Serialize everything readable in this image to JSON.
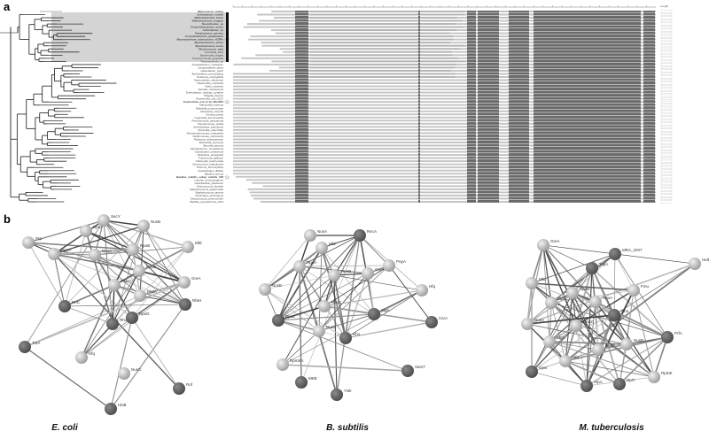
{
  "panels": {
    "a": "a",
    "b": "b"
  },
  "tree": {
    "taxa": [
      "Micrococcus_luteus",
      "Actinomyces_israelii",
      "Bifidobacterium_breve",
      "Bifidobacterium_longum",
      "Nocardioides_sp",
      "Propionibacterium_acnes",
      "Arthrobacter_sp",
      "Streptomyces_griseus",
      "Corynebacterium_glutamicum",
      "Mycobacterium_tuberculosis_H37Rv",
      "Mycobacterium_avium",
      "Mycobacterium_bovis",
      "Rhodococcus_equi",
      "Prevotella_bivia",
      "Bacteroides_fragilis",
      "Porphyromonas_gingivalis",
      "Flavobacterium_sp",
      "Fusobacterium_nucleatum",
      "Campylobacter_jejuni",
      "Helicobacter_pylori",
      "Burkholderia_cenocepacia",
      "Neisseria_meningitidis",
      "Haemophilus_influenzae",
      "Pasteurella_multocida",
      "Vibrio_cholerae",
      "Serratia_marcescens",
      "Enterobacter_cloacae_complex",
      "Shigella_flexneri",
      "Escherichia_coli_O157",
      "Escherichia_coli_K-12_MG1655",
      "Salmonella_enterica",
      "Klebsiella_pneumoniae",
      "Citrobacter_freundii",
      "Yersinia_pestis",
      "Legionella_pneumophila",
      "Pseudomonas_aeruginosa",
      "Pseudomonas_putida",
      "Acinetobacter_baumannii",
      "Moraxella_catarrhalis",
      "Stenotrophomonas_maltophilia",
      "Xanthomonas_campestris",
      "Ralstonia_solanacearum",
      "Bordetella_pertussis",
      "Brucella_abortus",
      "Agrobacterium_tumefaciens",
      "Caulobacter_crescentus",
      "Rickettsia_prowazekii",
      "Treponema_pallidum",
      "Chlamydia_trachomatis",
      "Deinococcus_radiodurans",
      "Thermus_thermophilus",
      "Clostridioides_difficile",
      "Bacillus_cereus",
      "Bacillus_subtilis_subsp_subtilis_168",
      "Listeria_monocytogenes",
      "Lactobacillus_plantarum",
      "Enterococcus_faecalis",
      "Staphylococcus_epidermidis",
      "Staphylococcus_aureus",
      "Clostridium_perfringens",
      "Streptococcus_pneumoniae",
      "Bacillus_pseudofirmus_OF4"
    ],
    "highlighted_taxa": [
      "Mycobacterium_tuberculosis_H37Rv",
      "Escherichia_coli_K-12_MG1655",
      "Bacillus_subtilis_subsp_subtilis_168"
    ]
  },
  "alignment": {
    "length_header": "Length"
  },
  "networks": [
    {
      "species": "E. coli",
      "nodes": [
        {
          "label": "Prp",
          "shade": "light"
        },
        {
          "label": "SecY",
          "shade": "light"
        },
        {
          "label": "NusB",
          "shade": "light"
        },
        {
          "label": "RpsJ",
          "shade": "light"
        },
        {
          "label": "RpoA",
          "shade": "light"
        },
        {
          "label": "NusA",
          "shade": "light"
        },
        {
          "label": "RpoB",
          "shade": "light"
        },
        {
          "label": "Mfd",
          "shade": "light"
        },
        {
          "label": "RpoZ",
          "shade": "light"
        },
        {
          "label": "RpoC",
          "shade": "light"
        },
        {
          "label": "GreA",
          "shade": "light"
        },
        {
          "label": "PnpA",
          "shade": "light"
        },
        {
          "label": "RnC",
          "shade": "dark"
        },
        {
          "label": "RfaH",
          "shade": "dark"
        },
        {
          "label": "RpoD",
          "shade": "dark"
        },
        {
          "label": "Rho",
          "shade": "dark"
        },
        {
          "label": "TrxA",
          "shade": "dark"
        },
        {
          "label": "Hfq",
          "shade": "light"
        },
        {
          "label": "NusG",
          "shade": "light"
        },
        {
          "label": "Rof",
          "shade": "dark"
        },
        {
          "label": "HisB",
          "shade": "dark"
        }
      ]
    },
    {
      "species": "B. subtilis",
      "nodes": [
        {
          "label": "NusA",
          "shade": "light"
        },
        {
          "label": "RecA",
          "shade": "dark"
        },
        {
          "label": "Mfd",
          "shade": "light"
        },
        {
          "label": "RpoA",
          "shade": "light"
        },
        {
          "label": "RpoB",
          "shade": "light"
        },
        {
          "label": "GreA",
          "shade": "light"
        },
        {
          "label": "PnpA",
          "shade": "light"
        },
        {
          "label": "NusB",
          "shade": "light"
        },
        {
          "label": "Hfq",
          "shade": "light"
        },
        {
          "label": "RpoC",
          "shade": "light"
        },
        {
          "label": "SigA",
          "shade": "dark"
        },
        {
          "label": "CsrA",
          "shade": "dark"
        },
        {
          "label": "RpoE",
          "shade": "dark"
        },
        {
          "label": "NusG",
          "shade": "light"
        },
        {
          "label": "Rho",
          "shade": "dark"
        },
        {
          "label": "RpmEA",
          "shade": "light"
        },
        {
          "label": "SamT",
          "shade": "dark"
        },
        {
          "label": "MtrB",
          "shade": "dark"
        },
        {
          "label": "YwlI",
          "shade": "dark"
        }
      ]
    },
    {
      "species": "M. tuberculosis",
      "nodes": [
        {
          "label": "GreA",
          "shade": "light"
        },
        {
          "label": "MRA_2207",
          "shade": "dark"
        },
        {
          "label": "TopA",
          "shade": "dark"
        },
        {
          "label": "HelD",
          "shade": "light"
        },
        {
          "label": "Mfd",
          "shade": "light"
        },
        {
          "label": "Fmu",
          "shade": "light"
        },
        {
          "label": "RpoB",
          "shade": "light"
        },
        {
          "label": "RpoC",
          "shade": "light"
        },
        {
          "label": "RpoA",
          "shade": "light"
        },
        {
          "label": "NusA",
          "shade": "light"
        },
        {
          "label": "Rho",
          "shade": "dark"
        },
        {
          "label": "RpoZ",
          "shade": "light"
        },
        {
          "label": "PrfA",
          "shade": "dark"
        },
        {
          "label": "SigA",
          "shade": "light"
        },
        {
          "label": "NusG",
          "shade": "light"
        },
        {
          "label": "NusB",
          "shade": "light"
        },
        {
          "label": "Hfq",
          "shade": "light"
        },
        {
          "label": "GpsI",
          "shade": "dark"
        },
        {
          "label": "AtpA",
          "shade": "dark"
        },
        {
          "label": "RplY",
          "shade": "dark"
        },
        {
          "label": "RpmE",
          "shade": "light"
        }
      ]
    }
  ],
  "colors": {
    "light": "#c8c8c8",
    "dark": "#4a4a4a",
    "shade": "#d4d4d4",
    "align_dark": "#6a6a6a",
    "align_light": "#c4c4c4"
  }
}
